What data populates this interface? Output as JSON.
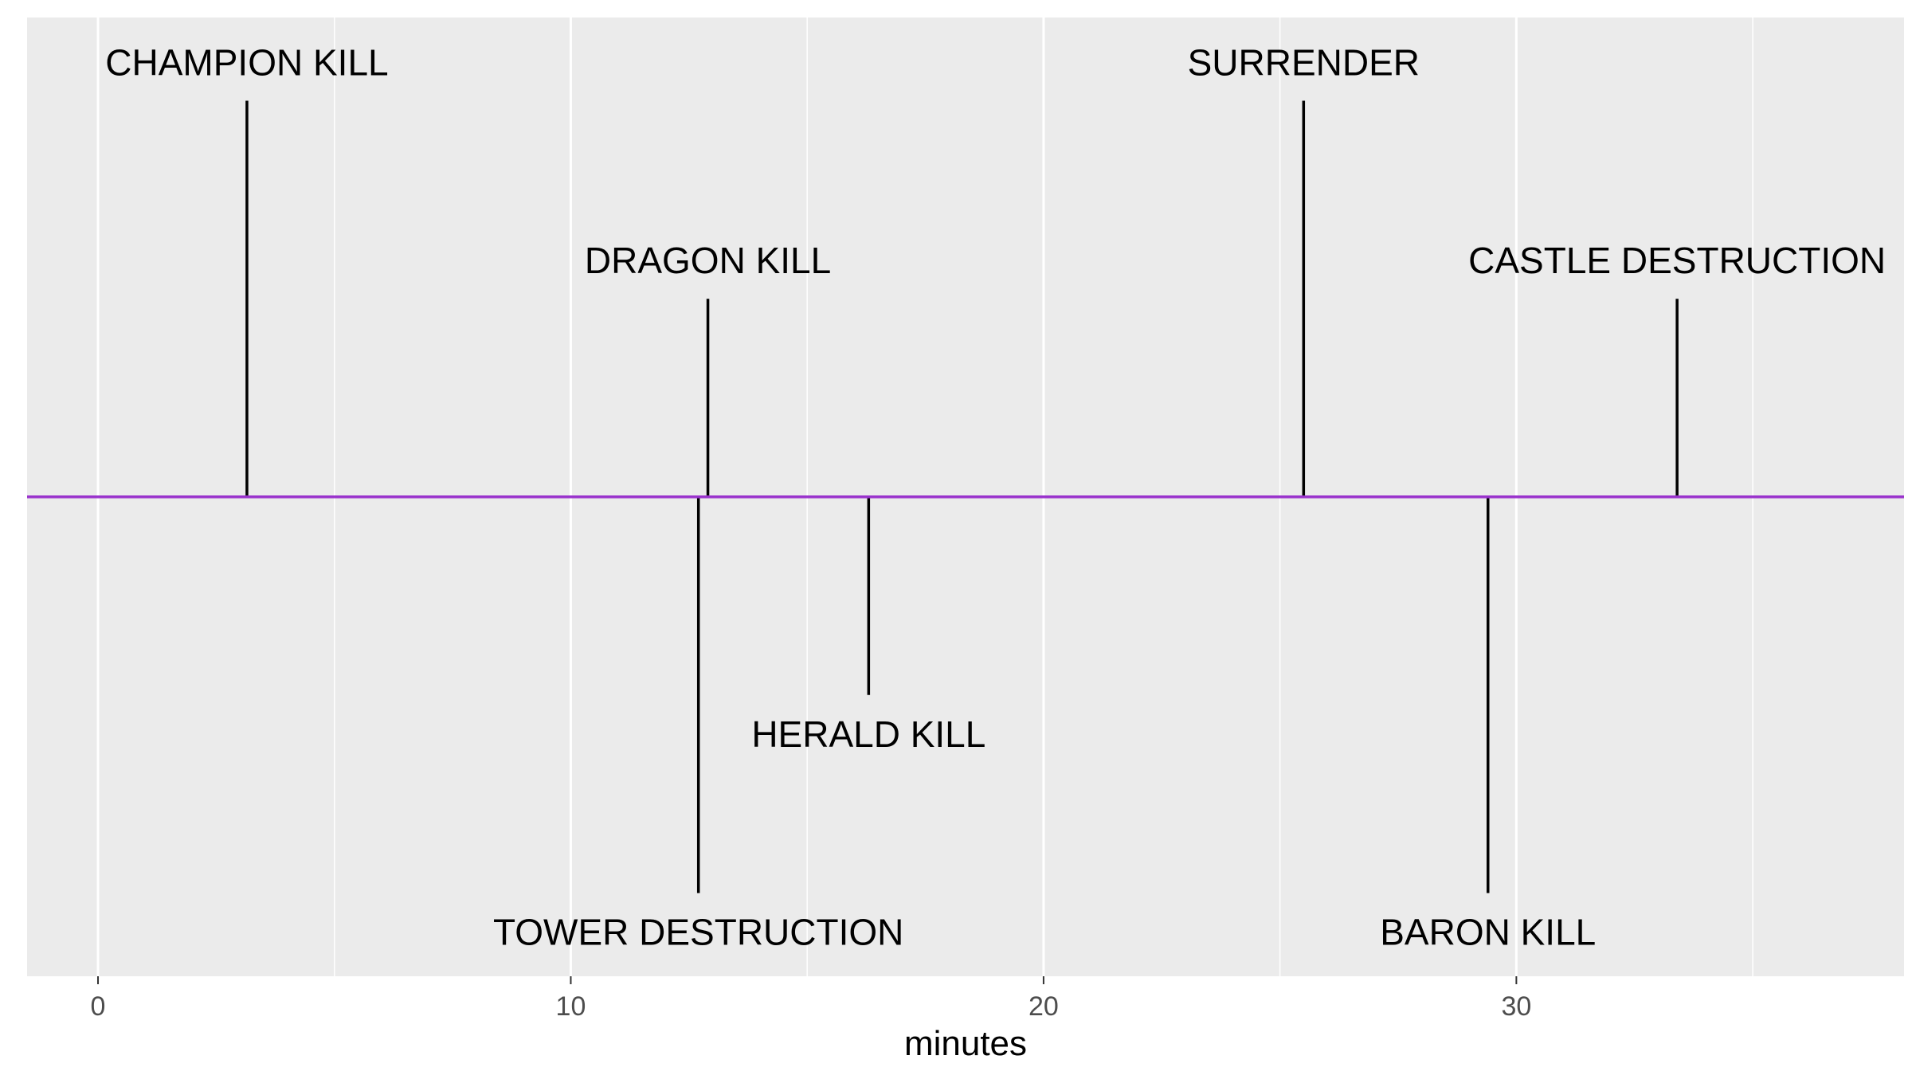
{
  "chart_data": {
    "type": "timeline",
    "title": "",
    "xlabel": "minutes",
    "ylabel": "",
    "xlim": [
      -1.5,
      38.2
    ],
    "ylim": [
      -1.21,
      1.21
    ],
    "x_major_ticks": [
      0,
      10,
      20,
      30
    ],
    "x_minor_ticks": [
      5,
      15,
      25,
      35
    ],
    "x_tick_labels": [
      "0",
      "10",
      "20",
      "30"
    ],
    "grid": true,
    "baseline_color": "#9932cc",
    "stem_color": "#000000",
    "panel_color": "#ebebeb",
    "events": [
      {
        "label": "CHAMPION KILL",
        "x": 3.15,
        "y": 1.0
      },
      {
        "label": "DRAGON KILL",
        "x": 12.9,
        "y": 0.5
      },
      {
        "label": "TOWER DESTRUCTION",
        "x": 12.7,
        "y": -1.0
      },
      {
        "label": "HERALD KILL",
        "x": 16.3,
        "y": -0.5
      },
      {
        "label": "SURRENDER",
        "x": 25.5,
        "y": 1.0
      },
      {
        "label": "BARON KILL",
        "x": 29.4,
        "y": -1.0
      },
      {
        "label": "CASTLE DESTRUCTION",
        "x": 33.4,
        "y": 0.5
      }
    ]
  }
}
